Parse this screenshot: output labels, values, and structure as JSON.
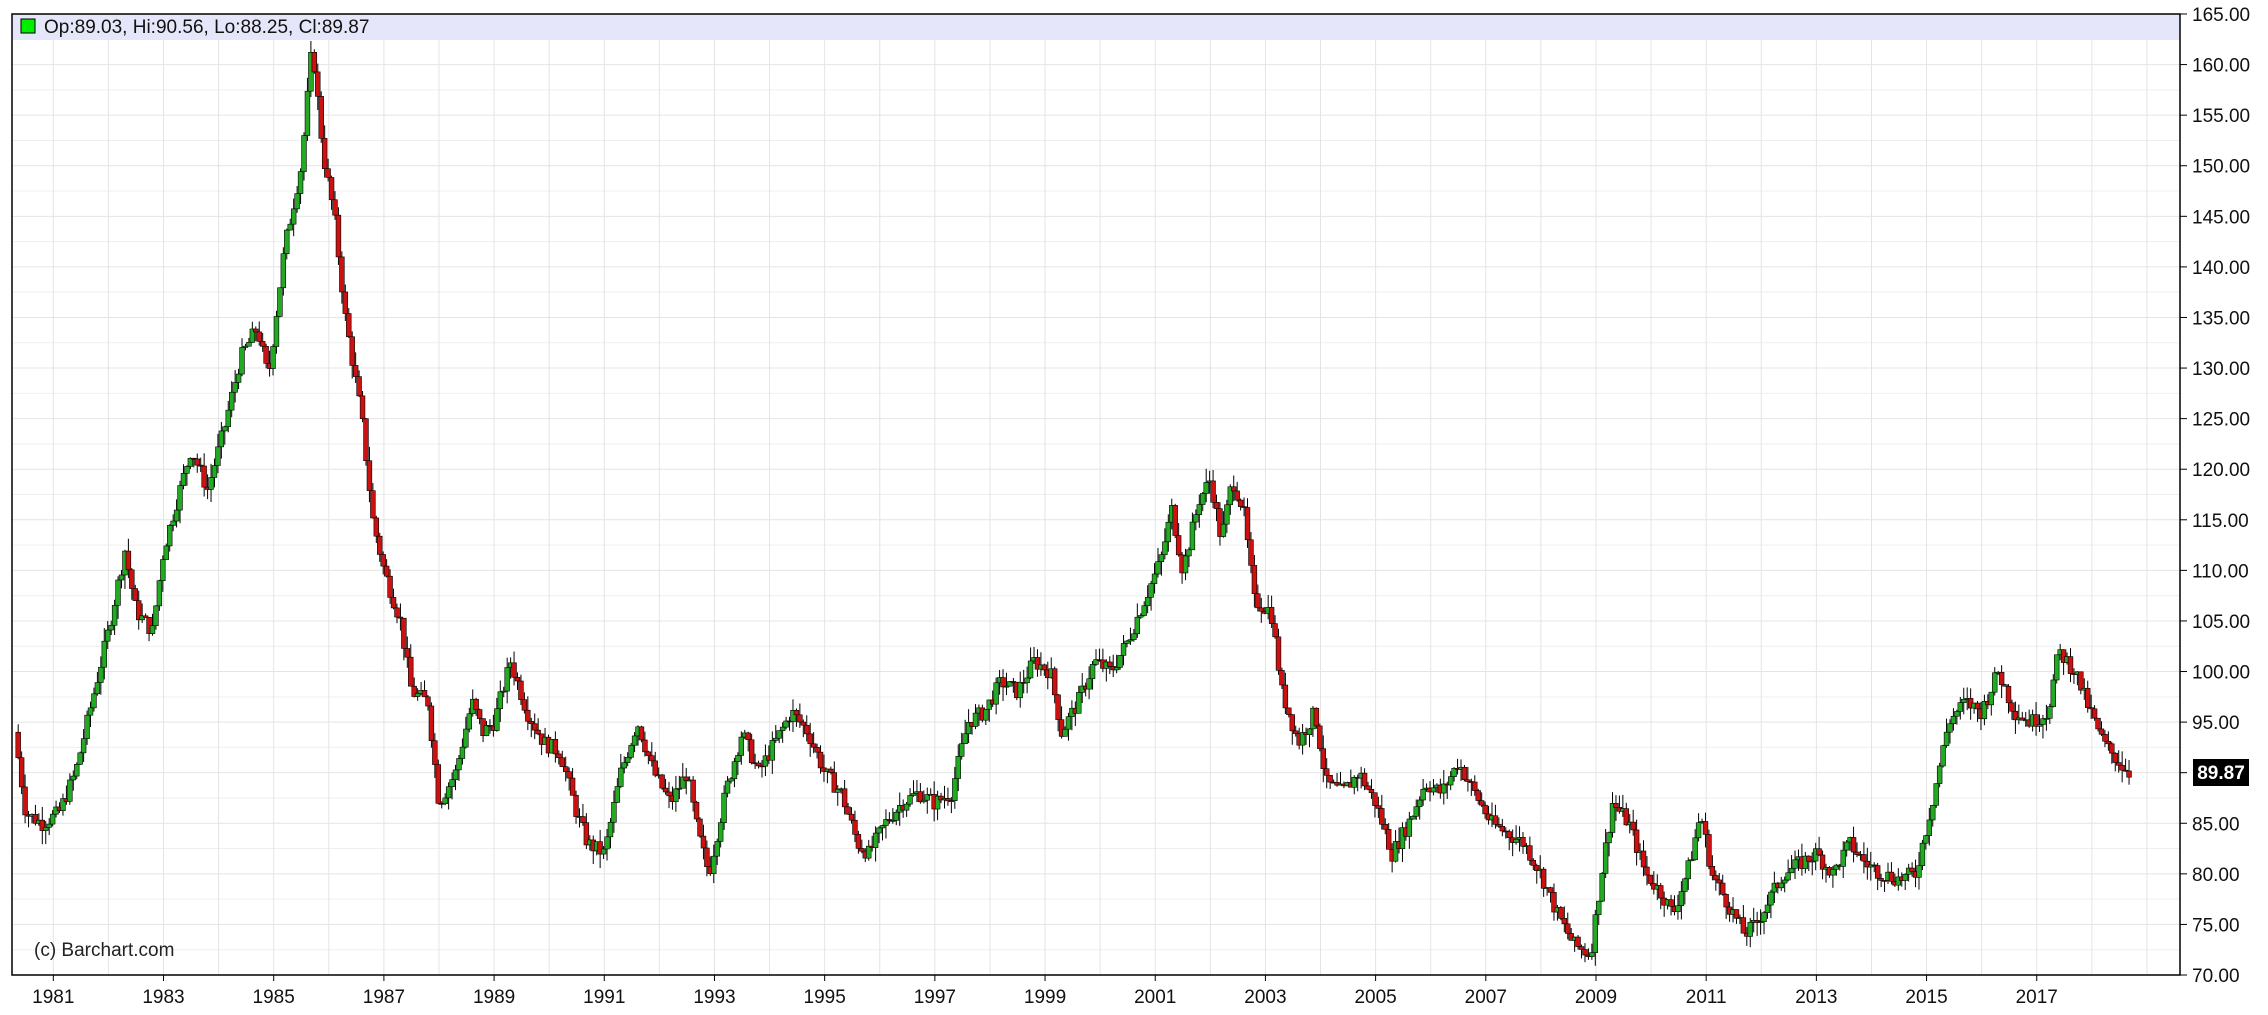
{
  "ohlc_readout": {
    "open_label": "Op:",
    "open": "89.03",
    "high_label": "Hi:",
    "high": "90.56",
    "low_label": "Lo:",
    "low": "88.25",
    "close_label": "Cl:",
    "close": "89.87"
  },
  "watermark": "(c) Barchart.com",
  "last_price_tag": "89.87",
  "colors": {
    "up": "#22aa22",
    "down": "#cc1111",
    "wick": "#000000",
    "grid": "#e4e4e4",
    "readout_band": "#e6e6fa",
    "swatch": "#00ee00",
    "price_tag_bg": "#000000",
    "price_tag_text": "#ffffff"
  },
  "chart_data": {
    "type": "candlestick",
    "x_range": [
      1980.25,
      2019.6
    ],
    "y_range": [
      70,
      165
    ],
    "grid": true,
    "x_ticks": [
      "1981",
      "1983",
      "1985",
      "1987",
      "1989",
      "1991",
      "1993",
      "1995",
      "1997",
      "1999",
      "2001",
      "2003",
      "2005",
      "2007",
      "2009",
      "2011",
      "2013",
      "2015",
      "2017"
    ],
    "y_ticks": [
      "165.00",
      "160.00",
      "155.00",
      "150.00",
      "145.00",
      "140.00",
      "135.00",
      "130.00",
      "125.00",
      "120.00",
      "115.00",
      "110.00",
      "105.00",
      "100.00",
      "95.00",
      "90.00",
      "85.00",
      "80.00",
      "75.00",
      "70.00"
    ],
    "close_path": [
      [
        1980.3,
        94
      ],
      [
        1980.5,
        86
      ],
      [
        1980.8,
        85
      ],
      [
        1981.1,
        86
      ],
      [
        1981.4,
        90
      ],
      [
        1981.7,
        97
      ],
      [
        1982.0,
        104
      ],
      [
        1982.3,
        112
      ],
      [
        1982.5,
        106
      ],
      [
        1982.8,
        104
      ],
      [
        1983.0,
        112
      ],
      [
        1983.3,
        118
      ],
      [
        1983.5,
        122
      ],
      [
        1983.8,
        118
      ],
      [
        1984.1,
        124
      ],
      [
        1984.4,
        131
      ],
      [
        1984.7,
        134
      ],
      [
        1984.9,
        129
      ],
      [
        1985.2,
        142
      ],
      [
        1985.5,
        150
      ],
      [
        1985.7,
        162
      ],
      [
        1985.9,
        151
      ],
      [
        1986.1,
        145
      ],
      [
        1986.3,
        135
      ],
      [
        1986.6,
        125
      ],
      [
        1986.8,
        115
      ],
      [
        1987.0,
        110
      ],
      [
        1987.3,
        105
      ],
      [
        1987.5,
        98
      ],
      [
        1987.8,
        97
      ],
      [
        1988.0,
        87
      ],
      [
        1988.3,
        90
      ],
      [
        1988.6,
        97
      ],
      [
        1988.8,
        94
      ],
      [
        1989.0,
        95
      ],
      [
        1989.3,
        101
      ],
      [
        1989.6,
        96
      ],
      [
        1989.9,
        93
      ],
      [
        1990.2,
        92
      ],
      [
        1990.5,
        86
      ],
      [
        1990.7,
        83
      ],
      [
        1991.0,
        82
      ],
      [
        1991.3,
        90
      ],
      [
        1991.6,
        95
      ],
      [
        1991.9,
        90
      ],
      [
        1992.2,
        87
      ],
      [
        1992.5,
        90
      ],
      [
        1992.7,
        84
      ],
      [
        1992.9,
        80
      ],
      [
        1993.2,
        88
      ],
      [
        1993.5,
        94
      ],
      [
        1993.8,
        90
      ],
      [
        1994.1,
        93
      ],
      [
        1994.4,
        96
      ],
      [
        1994.7,
        94
      ],
      [
        1995.0,
        90
      ],
      [
        1995.3,
        88
      ],
      [
        1995.6,
        83
      ],
      [
        1995.8,
        82
      ],
      [
        1996.1,
        85
      ],
      [
        1996.4,
        87
      ],
      [
        1996.7,
        88
      ],
      [
        1997.0,
        87
      ],
      [
        1997.3,
        88
      ],
      [
        1997.6,
        95
      ],
      [
        1997.9,
        96
      ],
      [
        1998.2,
        99
      ],
      [
        1998.5,
        98
      ],
      [
        1998.8,
        101
      ],
      [
        1999.1,
        100
      ],
      [
        1999.3,
        94
      ],
      [
        1999.6,
        97
      ],
      [
        1999.9,
        101
      ],
      [
        2000.2,
        100
      ],
      [
        2000.5,
        103
      ],
      [
        2000.8,
        107
      ],
      [
        2001.1,
        111
      ],
      [
        2001.3,
        116
      ],
      [
        2001.5,
        110
      ],
      [
        2001.8,
        117
      ],
      [
        2002.0,
        119
      ],
      [
        2002.2,
        113
      ],
      [
        2002.4,
        119
      ],
      [
        2002.6,
        116
      ],
      [
        2002.8,
        107
      ],
      [
        2003.1,
        106
      ],
      [
        2003.3,
        98
      ],
      [
        2003.6,
        93
      ],
      [
        2003.9,
        96
      ],
      [
        2004.1,
        89
      ],
      [
        2004.4,
        88
      ],
      [
        2004.7,
        90
      ],
      [
        2005.0,
        87
      ],
      [
        2005.3,
        82
      ],
      [
        2005.6,
        85
      ],
      [
        2005.9,
        89
      ],
      [
        2006.2,
        88
      ],
      [
        2006.5,
        91
      ],
      [
        2006.8,
        88
      ],
      [
        2007.1,
        85
      ],
      [
        2007.4,
        84
      ],
      [
        2007.7,
        83
      ],
      [
        2008.0,
        80
      ],
      [
        2008.3,
        76
      ],
      [
        2008.6,
        73
      ],
      [
        2008.9,
        72
      ],
      [
        2009.1,
        80
      ],
      [
        2009.3,
        87
      ],
      [
        2009.6,
        85
      ],
      [
        2009.9,
        80
      ],
      [
        2010.2,
        78
      ],
      [
        2010.4,
        76
      ],
      [
        2010.7,
        81
      ],
      [
        2010.9,
        86
      ],
      [
        2011.1,
        80
      ],
      [
        2011.4,
        77
      ],
      [
        2011.7,
        74
      ],
      [
        2011.9,
        75
      ],
      [
        2012.1,
        77
      ],
      [
        2012.4,
        80
      ],
      [
        2012.7,
        81
      ],
      [
        2013.0,
        82
      ],
      [
        2013.3,
        80
      ],
      [
        2013.6,
        83
      ],
      [
        2013.9,
        81
      ],
      [
        2014.2,
        80
      ],
      [
        2014.5,
        79.5
      ],
      [
        2014.8,
        80
      ],
      [
        2015.1,
        87
      ],
      [
        2015.4,
        95
      ],
      [
        2015.7,
        97
      ],
      [
        2016.0,
        96
      ],
      [
        2016.3,
        100
      ],
      [
        2016.6,
        96
      ],
      [
        2016.9,
        95
      ],
      [
        2017.2,
        96
      ],
      [
        2017.4,
        102
      ],
      [
        2017.7,
        100
      ],
      [
        2017.9,
        97
      ],
      [
        2018.2,
        93
      ],
      [
        2018.5,
        91
      ],
      [
        2018.7,
        89.87
      ]
    ]
  }
}
